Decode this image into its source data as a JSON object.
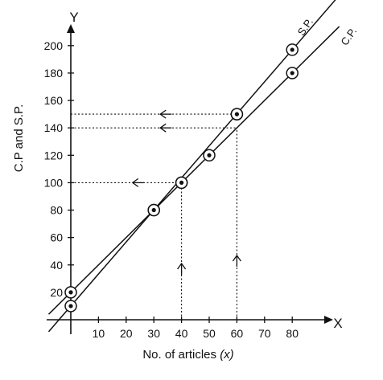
{
  "chart_data": {
    "type": "line",
    "xlabel_text": "No. of articles ",
    "xlabel_var": "(x)",
    "ylabel": "C.P and S.P.",
    "x_axis_letter": "X",
    "y_axis_letter": "Y",
    "xlim": [
      0,
      90
    ],
    "ylim": [
      0,
      210
    ],
    "x_ticks": [
      10,
      20,
      30,
      40,
      50,
      60,
      70,
      80
    ],
    "y_ticks": [
      20,
      40,
      60,
      80,
      100,
      120,
      140,
      160,
      180,
      200
    ],
    "series": [
      {
        "name": "S.P.",
        "x": [
          0,
          30,
          40,
          50,
          60,
          80
        ],
        "y": [
          10,
          80,
          100,
          120,
          150,
          197
        ]
      },
      {
        "name": "C.P.",
        "x": [
          0,
          30,
          40,
          60,
          80
        ],
        "y": [
          20,
          80,
          100,
          150,
          180
        ]
      }
    ],
    "guides": [
      {
        "type": "horizontal",
        "y": 150,
        "x": 60
      },
      {
        "type": "horizontal",
        "y": 140,
        "x": 60
      },
      {
        "type": "horizontal",
        "y": 100,
        "x": 40
      },
      {
        "type": "vertical",
        "x": 40,
        "y": 100
      },
      {
        "type": "vertical",
        "x": 60,
        "y": 140
      }
    ]
  }
}
